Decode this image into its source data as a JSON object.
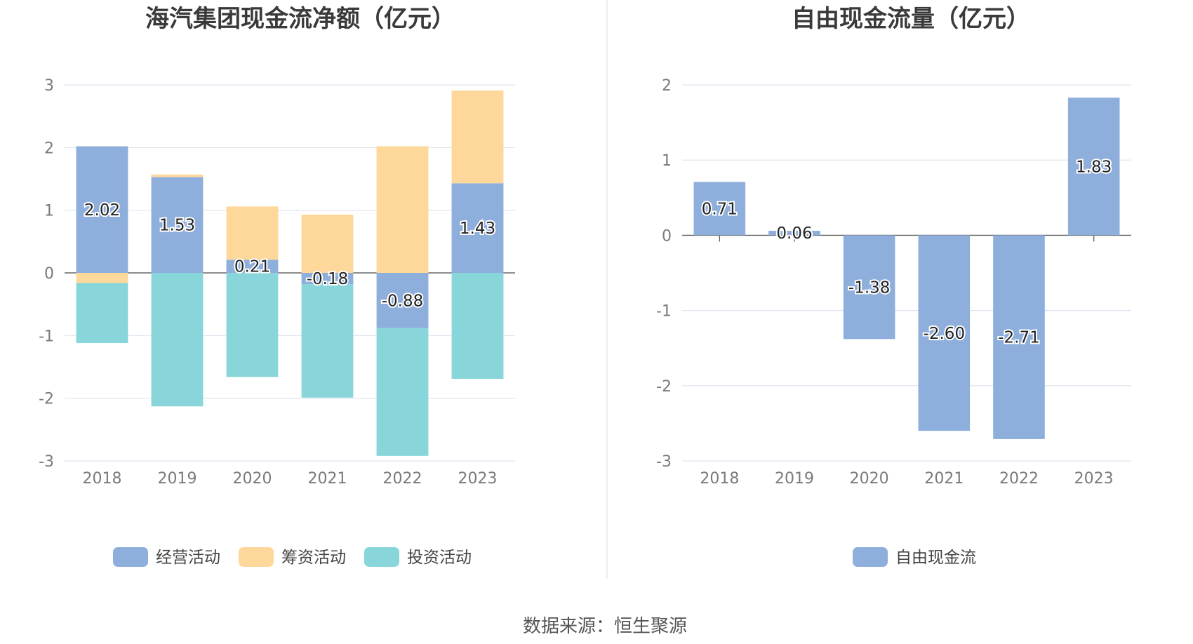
{
  "colors": {
    "operating": "#8eaedc",
    "financing": "#fed89a",
    "investing": "#88d6da"
  },
  "footer": {
    "source": "数据来源：恒生聚源"
  },
  "chart_data": [
    {
      "type": "bar",
      "stacked": true,
      "title": "海汽集团现金流净额（亿元）",
      "categories": [
        "2018",
        "2019",
        "2020",
        "2021",
        "2022",
        "2023"
      ],
      "ylim": [
        -3,
        3
      ],
      "yticks": [
        3,
        2,
        1,
        0,
        -1,
        -2,
        -3
      ],
      "grid": true,
      "legend_position": "bottom",
      "series": [
        {
          "name": "经营活动",
          "color": "#8eaedc",
          "values": [
            2.02,
            1.53,
            0.21,
            -0.18,
            -0.88,
            1.43
          ],
          "labels": [
            "2.02",
            "1.53",
            "0.21",
            "-0.18",
            "-0.88",
            "1.43"
          ]
        },
        {
          "name": "筹资活动",
          "color": "#fed89a",
          "values": [
            -0.16,
            0.04,
            0.85,
            0.93,
            2.02,
            1.48
          ]
        },
        {
          "name": "投资活动",
          "color": "#88d6da",
          "values": [
            -0.96,
            -2.13,
            -1.66,
            -1.81,
            -2.04,
            -1.69
          ]
        }
      ]
    },
    {
      "type": "bar",
      "title": "自由现金流量（亿元）",
      "categories": [
        "2018",
        "2019",
        "2020",
        "2021",
        "2022",
        "2023"
      ],
      "ylim": [
        -3,
        2
      ],
      "yticks": [
        2,
        1,
        0,
        -1,
        -2,
        -3
      ],
      "grid": true,
      "legend_position": "bottom",
      "series": [
        {
          "name": "自由现金流",
          "color": "#8eaedc",
          "values": [
            0.71,
            0.06,
            -1.38,
            -2.6,
            -2.71,
            1.83
          ],
          "labels": [
            "0.71",
            "0.06",
            "-1.38",
            "-2.60",
            "-2.71",
            "1.83"
          ]
        }
      ]
    }
  ]
}
